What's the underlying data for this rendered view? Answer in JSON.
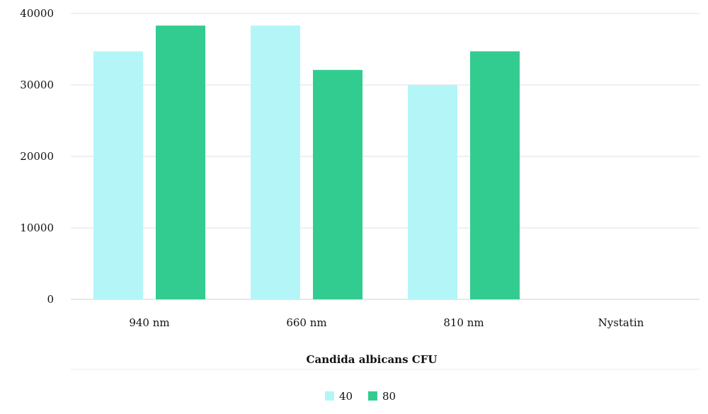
{
  "chart_data": {
    "type": "bar",
    "title": "",
    "xlabel": "Candida albicans CFU",
    "ylabel": "",
    "ylim": [
      0,
      40000
    ],
    "yticks": [
      0,
      10000,
      20000,
      30000,
      40000
    ],
    "grid": true,
    "legend": "bottom",
    "categories": [
      "940 nm",
      "660 nm",
      "810 nm",
      "Nystatin"
    ],
    "series": [
      {
        "name": "40",
        "color": "#b4f6f8",
        "values": [
          34700,
          38300,
          30000,
          0
        ]
      },
      {
        "name": "80",
        "color": "#33cc90",
        "values": [
          38300,
          32100,
          34700,
          0
        ]
      }
    ]
  }
}
